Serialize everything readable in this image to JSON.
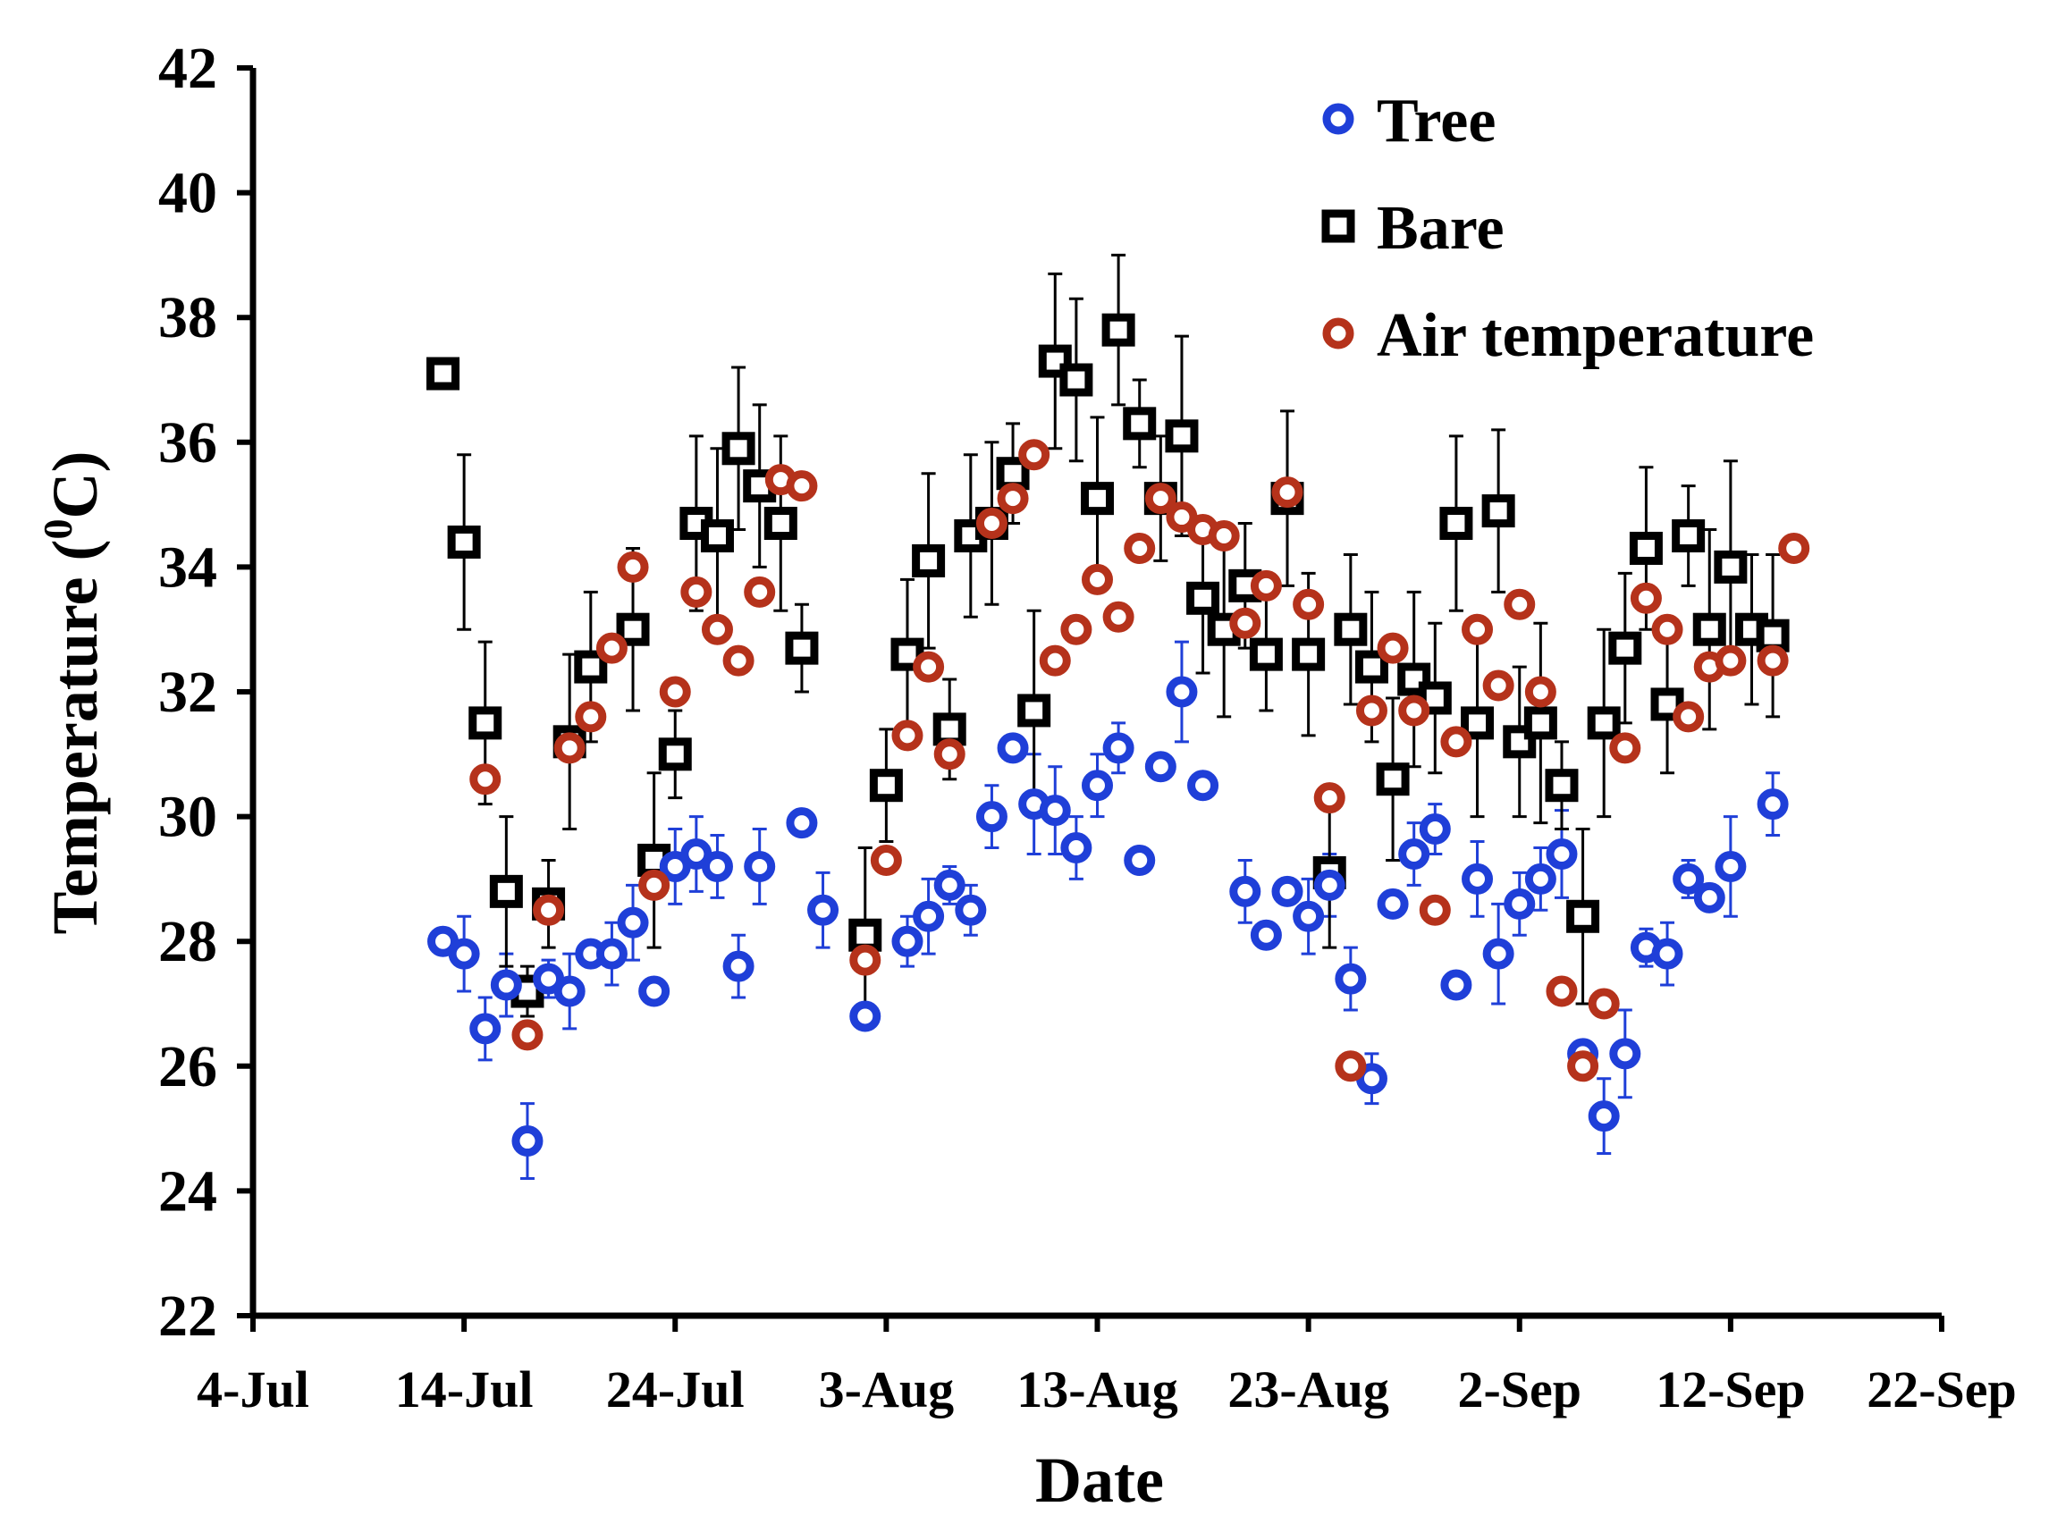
{
  "chart_data": {
    "type": "scatter",
    "title": "",
    "xlabel": "Date",
    "ylabel": "Temperature (0C)",
    "ylabel_parts": {
      "before": "Temperature (",
      "sup": "0",
      "after": "C)"
    },
    "xlim": [
      0,
      80
    ],
    "ylim": [
      22,
      42
    ],
    "x_ticks": [
      0,
      10,
      20,
      30,
      40,
      50,
      60,
      70,
      80
    ],
    "x_tick_labels": [
      "4-Jul",
      "14-Jul",
      "24-Jul",
      "3-Aug",
      "13-Aug",
      "23-Aug",
      "2-Sep",
      "12-Sep",
      "22-Sep"
    ],
    "y_ticks": [
      22,
      24,
      26,
      28,
      30,
      32,
      34,
      36,
      38,
      40,
      42
    ],
    "y_tick_labels": [
      "22",
      "24",
      "26",
      "28",
      "30",
      "32",
      "34",
      "36",
      "38",
      "40",
      "42"
    ],
    "grid": false,
    "legend_position": "top-right",
    "x_units": "days since 4-Jul",
    "series": [
      {
        "name": "Tree",
        "marker": "circle",
        "color": "#1f3fd8",
        "x": [
          9,
          10,
          11,
          12,
          13,
          14,
          15,
          16,
          17,
          18,
          19,
          20,
          21,
          22,
          23,
          24,
          26,
          27,
          29,
          31,
          32,
          33,
          34,
          35,
          36,
          37,
          38,
          39,
          40,
          41,
          42,
          43,
          44,
          45,
          47,
          48,
          49,
          50,
          51,
          52,
          53,
          54,
          55,
          56,
          57,
          58,
          59,
          60,
          61,
          62,
          63,
          64,
          65,
          66,
          67,
          68,
          69,
          70,
          72
        ],
        "y": [
          28.0,
          27.8,
          26.6,
          27.3,
          24.8,
          27.4,
          27.2,
          27.8,
          27.8,
          28.3,
          27.2,
          29.2,
          29.4,
          29.2,
          27.6,
          29.2,
          29.9,
          28.5,
          26.8,
          28.0,
          28.4,
          28.9,
          28.5,
          30.0,
          31.1,
          30.2,
          30.1,
          29.5,
          30.5,
          31.1,
          29.3,
          30.8,
          32.0,
          30.5,
          28.8,
          28.1,
          28.8,
          28.4,
          28.9,
          27.4,
          25.8,
          28.6,
          29.4,
          29.8,
          27.3,
          29.0,
          27.8,
          28.6,
          29.0,
          29.4,
          26.2,
          25.2,
          26.2,
          27.9,
          27.8,
          29.0,
          28.7,
          29.2,
          30.2
        ],
        "errors": [
          0.2,
          0.6,
          0.5,
          0.5,
          0.6,
          0.3,
          0.6,
          0.2,
          0.5,
          0.6,
          0.2,
          0.6,
          0.6,
          0.5,
          0.5,
          0.6,
          0.2,
          0.6,
          0.2,
          0.4,
          0.6,
          0.3,
          0.4,
          0.5,
          0.2,
          0.8,
          0.7,
          0.5,
          0.5,
          0.4,
          0.2,
          0.2,
          0.8,
          0.2,
          0.5,
          0.2,
          0.2,
          0.6,
          0.5,
          0.5,
          0.4,
          0.2,
          0.5,
          0.4,
          0.2,
          0.6,
          0.8,
          0.5,
          0.5,
          0.7,
          0.2,
          0.6,
          0.7,
          0.3,
          0.5,
          0.3,
          0.2,
          0.8,
          0.5
        ]
      },
      {
        "name": "Bare",
        "marker": "square",
        "color": "#000000",
        "x": [
          9,
          10,
          11,
          12,
          13,
          14,
          15,
          16,
          18,
          19,
          20,
          21,
          22,
          23,
          24,
          25,
          26,
          29,
          30,
          31,
          32,
          33,
          34,
          35,
          36,
          37,
          38,
          39,
          40,
          41,
          42,
          43,
          44,
          45,
          46,
          47,
          48,
          49,
          50,
          51,
          52,
          53,
          54,
          55,
          56,
          57,
          58,
          59,
          60,
          61,
          62,
          63,
          64,
          65,
          66,
          67,
          68,
          69,
          70,
          71,
          72
        ],
        "y": [
          37.1,
          34.4,
          31.5,
          28.8,
          27.2,
          28.6,
          31.2,
          32.4,
          33.0,
          29.3,
          31.0,
          34.7,
          34.5,
          35.9,
          35.3,
          34.7,
          32.7,
          28.1,
          30.5,
          32.6,
          34.1,
          31.4,
          34.5,
          34.7,
          35.5,
          31.7,
          37.3,
          37.0,
          35.1,
          37.8,
          36.3,
          35.1,
          36.1,
          33.5,
          33.0,
          33.7,
          32.6,
          35.1,
          32.6,
          29.1,
          33.0,
          32.4,
          30.6,
          32.2,
          31.9,
          34.7,
          31.5,
          34.9,
          31.2,
          31.5,
          30.5,
          28.4,
          31.5,
          32.7,
          34.3,
          31.8,
          34.5,
          33.0,
          34.0,
          33.0,
          32.9
        ],
        "errors": [
          0.2,
          1.4,
          1.3,
          1.2,
          0.4,
          0.7,
          1.4,
          1.2,
          1.3,
          1.4,
          0.7,
          1.4,
          1.4,
          1.3,
          1.3,
          1.4,
          0.7,
          1.4,
          0.9,
          1.2,
          1.4,
          0.8,
          1.3,
          1.3,
          0.8,
          1.6,
          1.4,
          1.3,
          1.3,
          1.2,
          0.7,
          1.0,
          1.6,
          1.2,
          1.4,
          1.0,
          0.9,
          1.4,
          1.3,
          1.2,
          1.2,
          1.2,
          1.3,
          1.4,
          1.2,
          1.4,
          1.5,
          1.3,
          1.2,
          1.6,
          0.7,
          1.4,
          1.5,
          1.2,
          1.3,
          1.1,
          0.8,
          1.6,
          1.7,
          1.2,
          1.3
        ]
      },
      {
        "name": "Air temperature",
        "marker": "circle",
        "color": "#b5321b",
        "x": [
          11,
          13,
          14,
          15,
          16,
          17,
          18,
          19,
          20,
          21,
          22,
          23,
          24,
          25,
          26,
          29,
          30,
          31,
          32,
          33,
          35,
          36,
          37,
          38,
          39,
          40,
          41,
          42,
          43,
          44,
          45,
          46,
          47,
          48,
          49,
          50,
          51,
          52,
          53,
          54,
          55,
          56,
          57,
          58,
          59,
          60,
          61,
          62,
          63,
          64,
          65,
          66,
          67,
          68,
          69,
          70,
          72,
          73
        ],
        "y": [
          30.6,
          26.5,
          28.5,
          31.1,
          31.6,
          32.7,
          34.0,
          28.9,
          32.0,
          33.6,
          33.0,
          32.5,
          33.6,
          35.4,
          35.3,
          27.7,
          29.3,
          31.3,
          32.4,
          31.0,
          34.7,
          35.1,
          35.8,
          32.5,
          33.0,
          33.8,
          33.2,
          34.3,
          35.1,
          34.8,
          34.6,
          34.5,
          33.1,
          33.7,
          35.2,
          33.4,
          30.3,
          26.0,
          31.7,
          32.7,
          31.7,
          28.5,
          31.2,
          33.0,
          32.1,
          33.4,
          32.0,
          27.2,
          26.0,
          27.0,
          31.1,
          33.5,
          33.0,
          31.6,
          32.4,
          32.5,
          32.5,
          34.3
        ]
      }
    ]
  }
}
